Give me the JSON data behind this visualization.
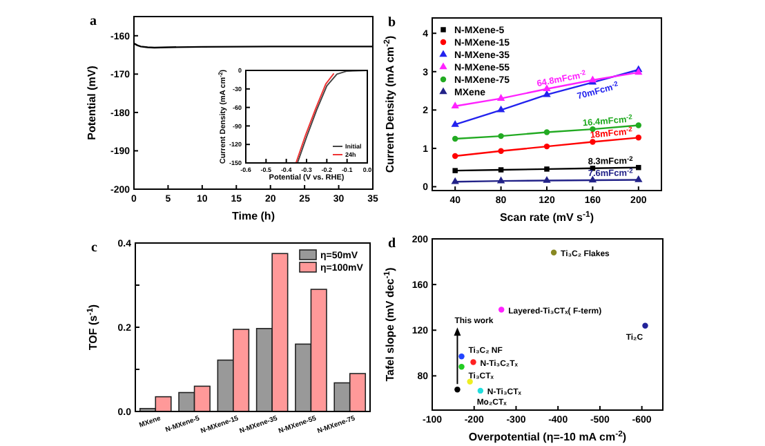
{
  "chart_data": [
    {
      "type": "line",
      "title": "a",
      "xlabel": "Time (h)",
      "ylabel": "Potential (mV)",
      "xlim": [
        0,
        35
      ],
      "ylim": [
        -200,
        -155
      ],
      "xticks": [
        0,
        5,
        10,
        15,
        20,
        25,
        30,
        35
      ],
      "yticks": [
        -200,
        -190,
        -180,
        -170,
        -160
      ],
      "marker": "none",
      "legend": false,
      "grid": false,
      "x": [
        0,
        0.5,
        1,
        2,
        3,
        5,
        10,
        20,
        35
      ],
      "series": [
        {
          "color": "#000000",
          "values": [
            -162,
            -162.5,
            -162.8,
            -163,
            -163.1,
            -163,
            -162.9,
            -162.8,
            -162.8
          ]
        }
      ]
    },
    {
      "type": "line",
      "xlabel": "Potential (V vs. RHE)",
      "ylabel": "Current Density (mA cm$^{-2}$)",
      "xlim": [
        -0.6,
        0
      ],
      "ylim": [
        -150,
        0
      ],
      "xticks": [
        -0.6,
        -0.5,
        -0.4,
        -0.3,
        -0.2,
        -0.1,
        {
          "value": 0,
          "label": "0.0"
        }
      ],
      "yticks": [
        -150,
        -120,
        -90,
        -60,
        -30,
        0
      ],
      "marker": "none",
      "legend": "bottom right",
      "grid": false,
      "series": [
        {
          "name": "Initial",
          "color": "#444444",
          "x": [
            -0.345,
            -0.3,
            -0.25,
            -0.2,
            -0.15,
            -0.1,
            0
          ],
          "values": [
            -150,
            -108,
            -64,
            -25,
            -6,
            -1,
            0
          ]
        },
        {
          "name": "24h",
          "color": "#ee3333",
          "x": [
            -0.352,
            -0.305,
            -0.255,
            -0.205,
            -0.165
          ],
          "values": [
            -150,
            -105,
            -62,
            -22,
            -5
          ]
        }
      ]
    },
    {
      "type": "line",
      "title": "b",
      "xlabel": "Scan rate (mV s$^{-1}$)",
      "ylabel": "Current Density (mA cm$^{-2}$)",
      "xlim": [
        20,
        220
      ],
      "ylim": [
        -0.1,
        4.4
      ],
      "xticks": [
        40,
        80,
        120,
        160,
        200
      ],
      "yticks": [
        0,
        1,
        2,
        3,
        4
      ],
      "legend": "top left",
      "grid": false,
      "x": [
        40,
        80,
        120,
        160,
        200
      ],
      "series": [
        {
          "name": "N-MXene-5",
          "color": "#000000",
          "marker": "square",
          "values": [
            0.42,
            0.44,
            0.46,
            0.48,
            0.5
          ]
        },
        {
          "name": "N-MXene-15",
          "color": "#ff0000",
          "marker": "circle",
          "values": [
            0.8,
            0.93,
            1.05,
            1.17,
            1.28
          ]
        },
        {
          "name": "N-MXene-35",
          "color": "#2222ee",
          "marker": "triangle",
          "values": [
            1.62,
            2.0,
            2.4,
            2.72,
            3.05
          ]
        },
        {
          "name": "N-MXene-55",
          "color": "#ff22ff",
          "marker": "triangle",
          "values": [
            2.1,
            2.3,
            2.55,
            2.78,
            2.98
          ]
        },
        {
          "name": "N-MXene-75",
          "color": "#22aa22",
          "marker": "circle",
          "values": [
            1.25,
            1.32,
            1.42,
            1.5,
            1.6
          ]
        },
        {
          "name": "MXene",
          "color": "#222288",
          "marker": "triangle",
          "values": [
            0.13,
            0.15,
            0.16,
            0.17,
            0.18
          ]
        }
      ],
      "annotations": [
        {
          "text": "64.8mFcm$^{-2}$",
          "x": 160,
          "y": 2.78
        },
        {
          "text": "70mFcm$^{-2}$",
          "x": 160,
          "y": 2.72
        },
        {
          "text": "16.4mFcm$^{-2}$",
          "x": 200,
          "y": 1.6
        },
        {
          "text": "18mFcm$^{-2}$",
          "x": 200,
          "y": 1.28
        },
        {
          "text": "8.3mFcm$^{-2}$",
          "x": 200,
          "y": 0.5
        },
        {
          "text": "7.6mFcm$^{-2}$",
          "x": 200,
          "y": 0.18
        }
      ]
    },
    {
      "type": "bar",
      "title": "c",
      "ylabel": "TOF (s$^{-1}$)",
      "ylim": [
        0,
        0.4
      ],
      "yticks": [
        {
          "value": 0,
          "label": "0.0"
        },
        {
          "value": 0.1,
          "label": null
        },
        0.2,
        {
          "value": 0.3,
          "label": null
        },
        0.4
      ],
      "legend": "top right",
      "grid": false,
      "categories": [
        "MXene",
        "N-MXene-5",
        "N-MXene-15",
        "N-MXene-35",
        "N-MXene-55",
        "N-MXene-75"
      ],
      "series": [
        {
          "name": "η=50mV",
          "color": "#999999",
          "values": [
            0.007,
            0.045,
            0.122,
            0.197,
            0.16,
            0.068
          ]
        },
        {
          "name": "η=100mV",
          "color": "#ff9999",
          "values": [
            0.035,
            0.06,
            0.195,
            0.375,
            0.29,
            0.09
          ]
        }
      ]
    },
    {
      "type": "scatter",
      "title": "d",
      "xlabel": "Overpotential (η=-10 mA cm$^{-2}$)",
      "ylabel": "Tafel slope (mV dec$^{-1}$)",
      "xlim": [
        -100,
        -650
      ],
      "ylim": [
        50,
        200
      ],
      "xticks": [
        -100,
        -200,
        -300,
        -400,
        -500,
        -600
      ],
      "yticks": [
        80,
        120,
        160,
        200
      ],
      "marker": "circle",
      "legend": false,
      "grid": false,
      "x": [
        -390,
        -265,
        -608,
        -170,
        -198,
        -170,
        -190,
        -215,
        -160
      ],
      "values": [
        188,
        138,
        124,
        97,
        92,
        88,
        75,
        67,
        68
      ],
      "colors": [
        "#888822",
        "#ff22ff",
        "#222299",
        "#2244ff",
        "#ff2222",
        "#22cc22",
        "#eeee22",
        "#22dddd",
        "#000000"
      ],
      "annotations": [
        {
          "text": "Ti₃C₂ Flakes",
          "x": -390,
          "y": 188
        },
        {
          "text": "Layered-Ti₃CTₓ( F-term)",
          "x": -265,
          "y": 138
        },
        {
          "text": "Ti₂C",
          "x": -608,
          "y": 124
        },
        {
          "text": "Ti₃C₂ NF",
          "x": -170,
          "y": 97
        },
        {
          "text": "N-Ti₃C₂Tₓ",
          "x": -198,
          "y": 92
        },
        {
          "text": "Ti₃CTₓ",
          "x": -170,
          "y": 88
        },
        {
          "text": "Mo₂CTₓ",
          "x": -190,
          "y": 75
        },
        {
          "text": "N-Ti₃CTₓ",
          "x": -215,
          "y": 67
        },
        {
          "text": "This work",
          "x": -160,
          "y": 68
        }
      ]
    }
  ]
}
